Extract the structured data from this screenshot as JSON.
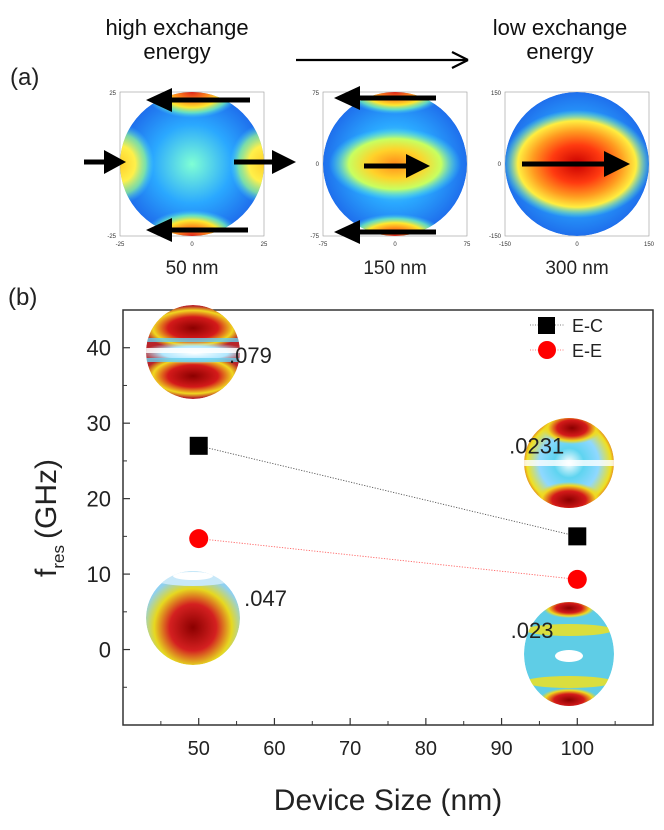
{
  "panel_a": {
    "label": "(a)",
    "high_title": "high exchange\nenergy",
    "low_title": "low exchange\nenergy",
    "maps": [
      {
        "size_label": "50 nm",
        "ticks": [
          "25",
          "0",
          "-25",
          "-25",
          "0",
          "25"
        ]
      },
      {
        "size_label": "150 nm",
        "ticks": [
          "75",
          "0",
          "-75",
          "-75",
          "0",
          "75"
        ]
      },
      {
        "size_label": "300 nm",
        "ticks": [
          "150",
          "0",
          "-150",
          "-150",
          "0",
          "150"
        ]
      }
    ]
  },
  "panel_b": {
    "label": "(b)"
  },
  "chart_data": {
    "type": "scatter",
    "title": "",
    "xlabel": "Device Size (nm)",
    "ylabel": "f_res (GHz)",
    "ylabel_main": "f",
    "ylabel_sub": "res",
    "ylabel_unit": "(GHz)",
    "xlim": [
      40,
      110
    ],
    "ylim": [
      -10,
      45
    ],
    "xticks": [
      50,
      60,
      70,
      80,
      90,
      100
    ],
    "yticks": [
      0,
      10,
      20,
      30,
      40
    ],
    "legend_position": "top-right",
    "series": [
      {
        "name": "E-C",
        "color": "#000000",
        "marker": "square",
        "x": [
          50,
          100
        ],
        "y": [
          27,
          15
        ]
      },
      {
        "name": "E-E",
        "color": "#ff0000",
        "marker": "circle",
        "x": [
          50,
          100
        ],
        "y": [
          14.7,
          9.3
        ]
      }
    ],
    "annotations": [
      {
        "text": ".079",
        "x": 54,
        "y": 38
      },
      {
        "text": ".0231",
        "x": 91,
        "y": 26
      },
      {
        "text": ".047",
        "x": 56,
        "y": 5.8
      },
      {
        "text": ".023",
        "x": 91.2,
        "y": 1.5
      }
    ]
  }
}
